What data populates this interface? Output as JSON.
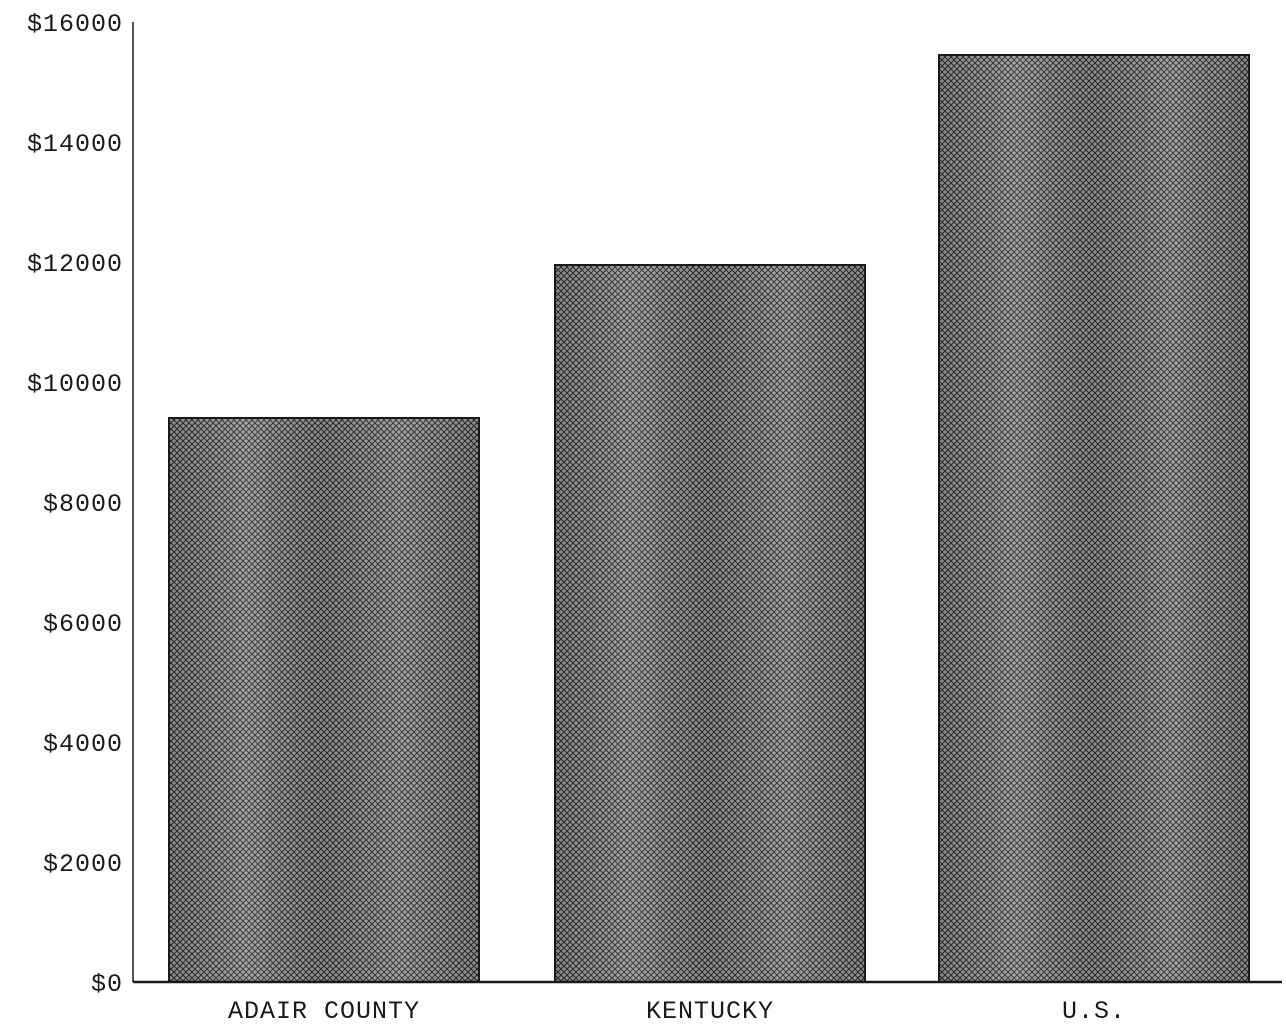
{
  "chart_data": {
    "type": "bar",
    "categories": [
      "ADAIR COUNTY",
      "KENTUCKY",
      "U.S."
    ],
    "values": [
      9400,
      11950,
      15450
    ],
    "ylim": [
      0,
      16000
    ],
    "yticks": [
      0,
      2000,
      4000,
      6000,
      8000,
      10000,
      12000,
      14000,
      16000
    ],
    "ytick_labels": [
      "$0",
      "$2000",
      "$4000",
      "$6000",
      "$8000",
      "$10000",
      "$12000",
      "$14000",
      "$16000"
    ],
    "grid": false,
    "legend": "none",
    "colors": {
      "bar_fill": "#8a8a8a",
      "bar_hatch": "#2b2b2b",
      "axis": "#1a1a1a",
      "background": "#ffffff"
    }
  }
}
